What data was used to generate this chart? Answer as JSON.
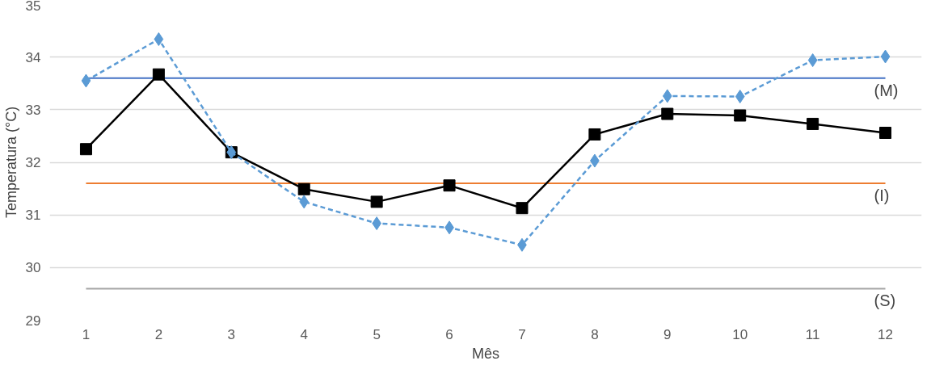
{
  "chart_data": {
    "type": "line",
    "xlabel": "Mês",
    "ylabel": "Temperatura (°C)",
    "x": [
      1,
      2,
      3,
      4,
      5,
      6,
      7,
      8,
      9,
      10,
      11,
      12
    ],
    "series": [
      {
        "color": "#000000",
        "marker": "square",
        "line_style": "solid",
        "values": [
          32.25,
          33.67,
          32.19,
          31.49,
          31.25,
          31.56,
          31.13,
          32.53,
          32.92,
          32.89,
          32.73,
          32.56
        ]
      },
      {
        "color": "#5b9bd5",
        "marker": "diamond",
        "line_style": "dashed",
        "values": [
          33.55,
          34.34,
          32.19,
          31.25,
          30.84,
          30.76,
          30.43,
          32.03,
          33.26,
          33.25,
          33.94,
          34.01
        ]
      }
    ],
    "ref_lines": [
      {
        "axis": "y",
        "value": 33.6,
        "color": "#4472c4",
        "label": "(M)"
      },
      {
        "axis": "y",
        "value": 31.6,
        "color": "#ed7d31",
        "label": "(I)"
      },
      {
        "axis": "y",
        "value": 29.6,
        "color": "#a5a5a5",
        "label": "(S)"
      }
    ],
    "xlim": [
      0.5,
      12.5
    ],
    "xticks": [
      1,
      2,
      3,
      4,
      5,
      6,
      7,
      8,
      9,
      10,
      11,
      12
    ],
    "ylim": [
      29,
      35
    ],
    "yticks": [
      29,
      30,
      31,
      32,
      33,
      34,
      35
    ],
    "grid": "y"
  }
}
